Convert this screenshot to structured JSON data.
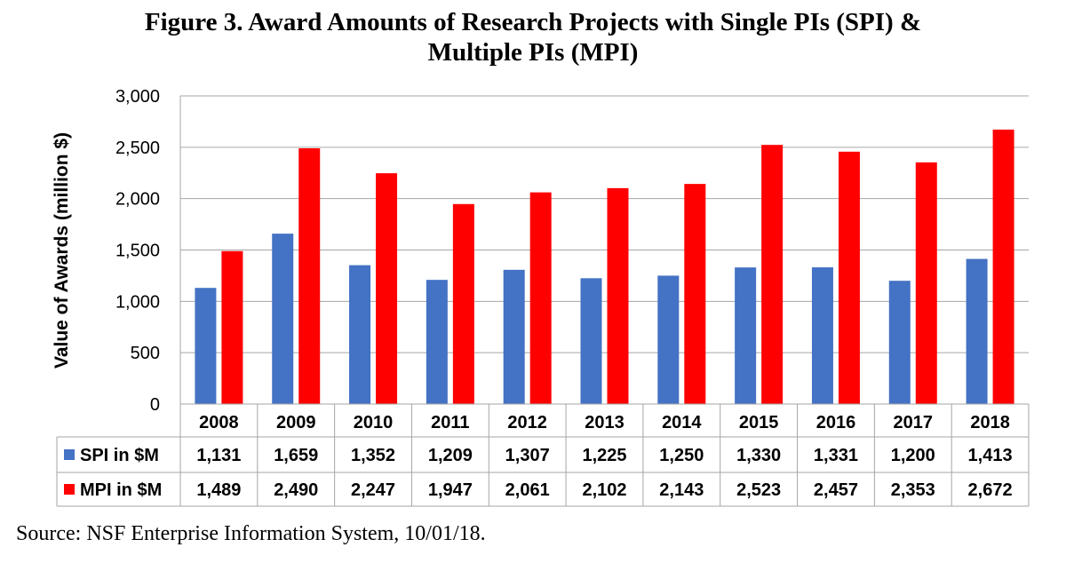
{
  "title_line1": "Figure 3. Award Amounts of Research Projects with Single PIs (SPI) &",
  "title_line2": "Multiple PIs (MPI)",
  "source": "Source: NSF Enterprise Information System, 10/01/18.",
  "chart_data": {
    "type": "bar",
    "ylabel": "Value of Awards (million $)",
    "ylim": [
      0,
      3000
    ],
    "yticks": [
      0,
      500,
      1000,
      1500,
      2000,
      2500,
      3000
    ],
    "ytick_labels": [
      "0",
      "500",
      "1,000",
      "1,500",
      "2,000",
      "2,500",
      "3,000"
    ],
    "grid": true,
    "legend": "data-table",
    "categories": [
      "2008",
      "2009",
      "2010",
      "2011",
      "2012",
      "2013",
      "2014",
      "2015",
      "2016",
      "2017",
      "2018"
    ],
    "series": [
      {
        "name": "SPI in $M",
        "color": "#4472C4",
        "values": [
          1131,
          1659,
          1352,
          1209,
          1307,
          1225,
          1250,
          1330,
          1331,
          1200,
          1413
        ],
        "labels": [
          "1,131",
          "1,659",
          "1,352",
          "1,209",
          "1,307",
          "1,225",
          "1,250",
          "1,330",
          "1,331",
          "1,200",
          "1,413"
        ]
      },
      {
        "name": "MPI in $M",
        "color": "#FF0000",
        "values": [
          1489,
          2490,
          2247,
          1947,
          2061,
          2102,
          2143,
          2523,
          2457,
          2353,
          2672
        ],
        "labels": [
          "1,489",
          "2,490",
          "2,247",
          "1,947",
          "2,061",
          "2,102",
          "2,143",
          "2,523",
          "2,457",
          "2,353",
          "2,672"
        ]
      }
    ]
  }
}
